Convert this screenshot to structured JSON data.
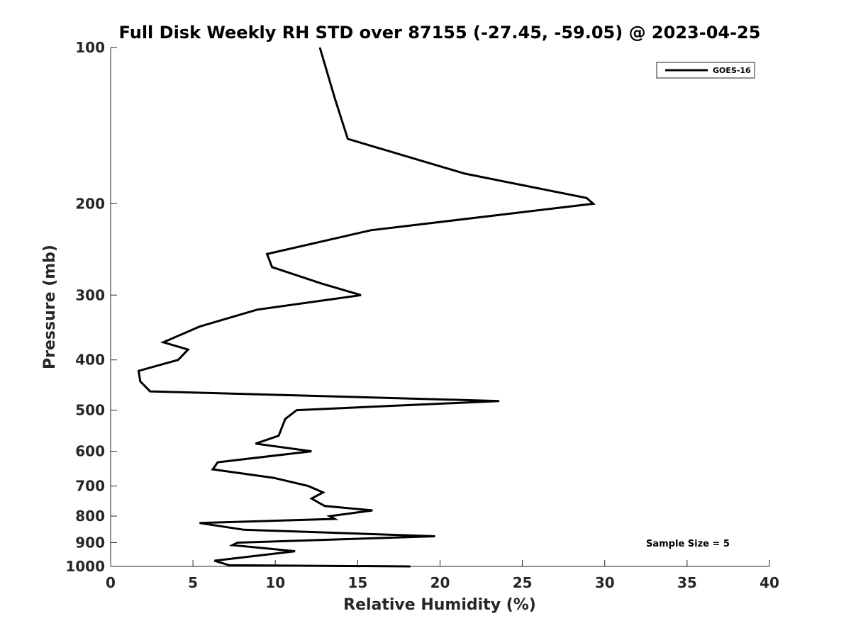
{
  "chart_data": {
    "type": "line",
    "title": "Full Disk Weekly RH STD over 87155 (-27.45, -59.05) @ 2023-04-25",
    "xlabel": "Relative Humidity (%)",
    "ylabel": "Pressure (mb)",
    "xlim": [
      0,
      40
    ],
    "ylim": [
      100,
      1000
    ],
    "y_scale": "log",
    "y_reversed": true,
    "x_ticks": [
      0,
      5,
      10,
      15,
      20,
      25,
      30,
      35,
      40
    ],
    "y_ticks": [
      100,
      200,
      300,
      400,
      500,
      600,
      700,
      800,
      900,
      1000
    ],
    "grid": false,
    "legend_position": "top-right",
    "series": [
      {
        "name": "GOES-16",
        "color": "#000000",
        "x": [
          12.7,
          13.6,
          14.4,
          21.5,
          28.9,
          29.3,
          15.8,
          9.5,
          9.8,
          12.8,
          15.2,
          8.9,
          5.4,
          3.2,
          4.7,
          4.1,
          1.7,
          1.8,
          2.4,
          23.6,
          11.3,
          10.6,
          10.2,
          8.8,
          12.2,
          6.5,
          6.2,
          9.9,
          12.0,
          12.9,
          12.2,
          13.0,
          15.9,
          13.3,
          13.6,
          5.4,
          8.1,
          19.7,
          7.7,
          7.4,
          11.2,
          6.3,
          7.2,
          18.2
        ],
        "y": [
          100,
          125,
          150,
          175,
          195,
          200,
          225,
          250,
          265,
          285,
          300,
          320,
          345,
          370,
          382,
          400,
          420,
          440,
          460,
          480,
          500,
          520,
          560,
          580,
          600,
          630,
          650,
          675,
          700,
          720,
          740,
          765,
          780,
          800,
          810,
          825,
          850,
          875,
          900,
          910,
          935,
          975,
          995,
          1000
        ]
      }
    ],
    "annotations": [
      "Sample Size = 5"
    ]
  }
}
